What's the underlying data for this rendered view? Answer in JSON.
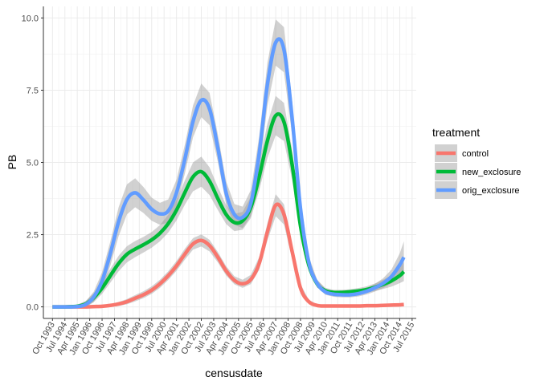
{
  "chart_data": {
    "type": "line",
    "xlabel": "censusdate",
    "ylabel": "PB",
    "ylim": [
      -0.4,
      10.4
    ],
    "yticks": [
      0.0,
      2.5,
      5.0,
      7.5,
      10.0
    ],
    "ytick_labels": [
      "0.0",
      "2.5",
      "5.0",
      "7.5",
      "10.0"
    ],
    "xlim": [
      1993.2,
      2015.75
    ],
    "xticks": [
      1993.75,
      1994.5,
      1995.25,
      1996.0,
      1996.75,
      1997.5,
      1998.25,
      1999.0,
      1999.75,
      2000.5,
      2001.25,
      2002.0,
      2002.75,
      2003.5,
      2004.25,
      2005.0,
      2005.75,
      2006.5,
      2007.25,
      2008.0,
      2008.75,
      2009.5,
      2010.25,
      2011.0,
      2011.75,
      2012.5,
      2013.25,
      2014.0,
      2014.75,
      2015.5
    ],
    "xtick_labels": [
      "Oct 1993",
      "Jul 1994",
      "Apr 1995",
      "Jan 1996",
      "Oct 1996",
      "Jul 1997",
      "Apr 1998",
      "Jan 1999",
      "Oct 1999",
      "Jul 2000",
      "Apr 2001",
      "Jan 2002",
      "Oct 2002",
      "Jul 2003",
      "Apr 2004",
      "Jan 2005",
      "Oct 2005",
      "Jul 2006",
      "Apr 2007",
      "Jan 2008",
      "Oct 2008",
      "Jul 2009",
      "Apr 2010",
      "Jan 2011",
      "Oct 2011",
      "Jul 2012",
      "Apr 2013",
      "Jan 2014",
      "Oct 2014",
      "Jul 2015"
    ],
    "grid": true,
    "legend": {
      "title": "treatment",
      "position": "right"
    },
    "x": [
      1993.75,
      1994.5,
      1995.25,
      1995.75,
      1996.25,
      1996.75,
      1997.25,
      1997.75,
      1998.25,
      1998.75,
      1999.25,
      1999.75,
      2000.25,
      2000.75,
      2001.25,
      2001.75,
      2002.25,
      2002.75,
      2003.25,
      2003.75,
      2004.25,
      2004.75,
      2005.25,
      2005.75,
      2006.25,
      2006.75,
      2007.25,
      2007.75,
      2008.25,
      2008.75,
      2009.25,
      2009.75,
      2010.25,
      2010.75,
      2011.25,
      2011.75,
      2012.25,
      2012.75,
      2013.25,
      2013.75,
      2014.25,
      2014.75,
      2015.0
    ],
    "series": [
      {
        "name": "control",
        "color": "#F8766D",
        "values": [
          0.0,
          0.0,
          0.0,
          0.0,
          0.01,
          0.02,
          0.05,
          0.1,
          0.18,
          0.3,
          0.42,
          0.58,
          0.8,
          1.08,
          1.42,
          1.82,
          2.18,
          2.3,
          2.12,
          1.72,
          1.25,
          0.92,
          0.8,
          0.95,
          1.5,
          2.6,
          3.52,
          3.2,
          1.9,
          0.65,
          0.18,
          0.05,
          0.03,
          0.03,
          0.03,
          0.03,
          0.03,
          0.04,
          0.04,
          0.05,
          0.06,
          0.07,
          0.08
        ],
        "ci_half_width": [
          0.01,
          0.01,
          0.01,
          0.01,
          0.02,
          0.03,
          0.05,
          0.07,
          0.09,
          0.11,
          0.12,
          0.13,
          0.14,
          0.15,
          0.17,
          0.19,
          0.2,
          0.21,
          0.2,
          0.18,
          0.16,
          0.14,
          0.14,
          0.16,
          0.22,
          0.3,
          0.38,
          0.35,
          0.26,
          0.14,
          0.07,
          0.04,
          0.03,
          0.03,
          0.03,
          0.03,
          0.03,
          0.03,
          0.03,
          0.04,
          0.04,
          0.05,
          0.06
        ]
      },
      {
        "name": "new_exclosure",
        "color": "#00BA38",
        "values": [
          0.0,
          0.0,
          0.02,
          0.1,
          0.32,
          0.65,
          1.08,
          1.5,
          1.82,
          2.0,
          2.15,
          2.32,
          2.55,
          2.88,
          3.35,
          3.95,
          4.5,
          4.68,
          4.35,
          3.75,
          3.2,
          2.92,
          2.98,
          3.45,
          4.5,
          5.75,
          6.62,
          6.4,
          4.9,
          2.8,
          1.45,
          0.8,
          0.56,
          0.5,
          0.5,
          0.52,
          0.55,
          0.6,
          0.68,
          0.78,
          0.9,
          1.08,
          1.22
        ],
        "ci_half_width": [
          0.05,
          0.05,
          0.06,
          0.1,
          0.15,
          0.2,
          0.24,
          0.27,
          0.28,
          0.28,
          0.27,
          0.27,
          0.28,
          0.31,
          0.36,
          0.42,
          0.5,
          0.52,
          0.48,
          0.4,
          0.33,
          0.3,
          0.31,
          0.37,
          0.47,
          0.6,
          0.68,
          0.66,
          0.52,
          0.33,
          0.2,
          0.13,
          0.1,
          0.09,
          0.09,
          0.09,
          0.1,
          0.11,
          0.13,
          0.16,
          0.2,
          0.26,
          0.33
        ]
      },
      {
        "name": "orig_exclosure",
        "color": "#619CFF",
        "values": [
          0.0,
          0.0,
          0.01,
          0.08,
          0.35,
          0.9,
          1.85,
          2.95,
          3.72,
          3.95,
          3.7,
          3.38,
          3.22,
          3.32,
          3.95,
          5.1,
          6.42,
          7.15,
          6.85,
          5.5,
          3.95,
          3.2,
          3.1,
          3.6,
          5.3,
          7.7,
          9.15,
          8.9,
          6.5,
          3.4,
          1.55,
          0.82,
          0.52,
          0.44,
          0.42,
          0.42,
          0.46,
          0.54,
          0.66,
          0.82,
          1.05,
          1.45,
          1.72
        ],
        "ci_half_width": [
          0.05,
          0.05,
          0.06,
          0.1,
          0.18,
          0.3,
          0.42,
          0.5,
          0.52,
          0.5,
          0.45,
          0.4,
          0.38,
          0.4,
          0.45,
          0.5,
          0.55,
          0.58,
          0.56,
          0.48,
          0.4,
          0.36,
          0.37,
          0.45,
          0.6,
          0.75,
          0.8,
          0.78,
          0.6,
          0.35,
          0.2,
          0.13,
          0.1,
          0.09,
          0.09,
          0.09,
          0.1,
          0.11,
          0.13,
          0.17,
          0.24,
          0.4,
          0.55
        ]
      }
    ]
  }
}
